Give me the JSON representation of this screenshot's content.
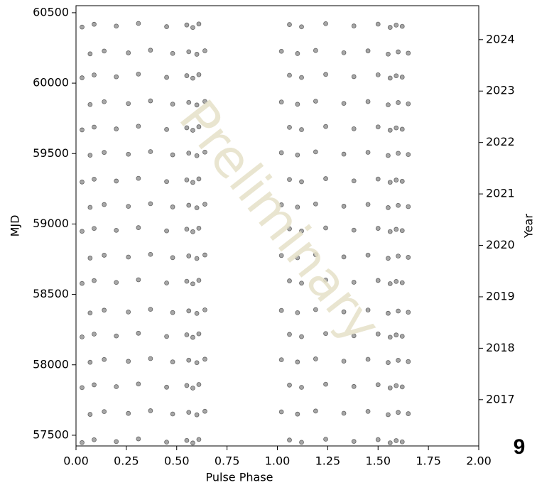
{
  "chart_data": {
    "type": "scatter",
    "x_label": "Pulse Phase",
    "y_label": "MJD",
    "y2_label": "Year",
    "watermark": "Preliminary",
    "color": "#000000",
    "xlim": [
      0,
      2
    ],
    "xticks": [
      {
        "value": 0,
        "label": "0.00"
      },
      {
        "value": 0.25,
        "label": "0.25"
      },
      {
        "value": 0.5,
        "label": "0.50"
      },
      {
        "value": 0.75,
        "label": "0.75"
      },
      {
        "value": 1,
        "label": "1.00"
      },
      {
        "value": 1.25,
        "label": "1.25"
      },
      {
        "value": 1.5,
        "label": "1.50"
      },
      {
        "value": 1.75,
        "label": "1.75"
      },
      {
        "value": 2,
        "label": "2.00"
      }
    ],
    "ylim": [
      57424,
      60550
    ],
    "yticks": [
      57500,
      58000,
      58500,
      59000,
      59500,
      60000,
      60500
    ],
    "y2lim": [
      2016.1,
      2024.66
    ],
    "y2ticks": [
      2017,
      2018,
      2019,
      2020,
      2021,
      2022,
      2023,
      2024
    ],
    "x": [
      0.03,
      0.09,
      0.2,
      0.31,
      0.45,
      0.55,
      0.58,
      0.61,
      1.06,
      1.12,
      1.24,
      1.38,
      1.5,
      1.56,
      1.59,
      1.62,
      0.07,
      0.14,
      0.26,
      0.37,
      0.48,
      0.56,
      0.6,
      0.64,
      1.02,
      1.1,
      1.19,
      1.33,
      1.45,
      1.55,
      1.6,
      1.65,
      0.03,
      0.09,
      0.2,
      0.31,
      0.45,
      0.55,
      0.58,
      0.61,
      1.06,
      1.12,
      1.24,
      1.38,
      1.5,
      1.56,
      1.59,
      1.62,
      0.07,
      0.14,
      0.26,
      0.37,
      0.48,
      0.56,
      0.6,
      0.64,
      1.02,
      1.1,
      1.19,
      1.33,
      1.45,
      1.55,
      1.6,
      1.65,
      0.03,
      0.09,
      0.2,
      0.31,
      0.45,
      0.55,
      0.58,
      0.61,
      1.06,
      1.12,
      1.24,
      1.38,
      1.5,
      1.56,
      1.59,
      1.62,
      0.07,
      0.14,
      0.26,
      0.37,
      0.48,
      0.56,
      0.6,
      0.64,
      1.02,
      1.1,
      1.19,
      1.33,
      1.45,
      1.55,
      1.6,
      1.65,
      0.03,
      0.09,
      0.2,
      0.31,
      0.45,
      0.55,
      0.58,
      0.61,
      1.06,
      1.12,
      1.24,
      1.38,
      1.5,
      1.56,
      1.59,
      1.62,
      0.07,
      0.14,
      0.26,
      0.37,
      0.48,
      0.56,
      0.6,
      0.64,
      1.02,
      1.1,
      1.19,
      1.33,
      1.45,
      1.55,
      1.6,
      1.65,
      0.03,
      0.09,
      0.2,
      0.31,
      0.45,
      0.55,
      0.58,
      0.61,
      1.06,
      1.12,
      1.24,
      1.38,
      1.5,
      1.56,
      1.59,
      1.62,
      0.07,
      0.14,
      0.26,
      0.37,
      0.48,
      0.56,
      0.6,
      0.64,
      1.02,
      1.1,
      1.19,
      1.33,
      1.45,
      1.55,
      1.6,
      1.65,
      0.03,
      0.09,
      0.2,
      0.31,
      0.45,
      0.55,
      0.58,
      0.61,
      1.06,
      1.12,
      1.24,
      1.38,
      1.5,
      1.56,
      1.59,
      1.62,
      0.07,
      0.14,
      0.26,
      0.37,
      0.48,
      0.56,
      0.6,
      0.64,
      1.02,
      1.1,
      1.19,
      1.33,
      1.45,
      1.55,
      1.6,
      1.65,
      0.03,
      0.09,
      0.2,
      0.31,
      0.45,
      0.55,
      0.58,
      0.61,
      1.06,
      1.12,
      1.24,
      1.38,
      1.5,
      1.56,
      1.59,
      1.62,
      0.07,
      0.14,
      0.26,
      0.37,
      0.48,
      0.56,
      0.6,
      0.64,
      1.02,
      1.1,
      1.19,
      1.33,
      1.45,
      1.55,
      1.6,
      1.65,
      0.03,
      0.09,
      0.2,
      0.31,
      0.45,
      0.55,
      0.58,
      0.61,
      1.06,
      1.12,
      1.24,
      1.38,
      1.5,
      1.56,
      1.59,
      1.62,
      0.07,
      0.14,
      0.26,
      0.37,
      0.48,
      0.56,
      0.6,
      0.64,
      1.02,
      1.1,
      1.19,
      1.33,
      1.45,
      1.55,
      1.6,
      1.65,
      0.03,
      0.09,
      0.2,
      0.31,
      0.45,
      0.55,
      0.58,
      0.61,
      1.06,
      1.12,
      1.24,
      1.38,
      1.5,
      1.56,
      1.59,
      1.62
    ],
    "values": [
      57448,
      57468,
      57455,
      57474,
      57451,
      57463,
      57445,
      57470,
      57466,
      57450,
      57472,
      57456,
      57469,
      57446,
      57462,
      57453,
      57648,
      57668,
      57655,
      57674,
      57651,
      57663,
      57645,
      57670,
      57666,
      57650,
      57672,
      57656,
      57669,
      57646,
      57662,
      57653,
      57838,
      57858,
      57845,
      57864,
      57841,
      57853,
      57835,
      57860,
      57856,
      57840,
      57862,
      57846,
      57859,
      57836,
      57852,
      57843,
      58018,
      58038,
      58025,
      58044,
      58021,
      58033,
      58015,
      58040,
      58036,
      58020,
      58042,
      58026,
      58039,
      58016,
      58032,
      58023,
      58198,
      58218,
      58205,
      58224,
      58201,
      58213,
      58195,
      58220,
      58216,
      58200,
      58222,
      58206,
      58219,
      58196,
      58212,
      58203,
      58368,
      58388,
      58375,
      58394,
      58371,
      58383,
      58365,
      58390,
      58386,
      58370,
      58392,
      58376,
      58389,
      58366,
      58382,
      58373,
      58578,
      58598,
      58585,
      58604,
      58581,
      58593,
      58575,
      58600,
      58596,
      58580,
      58602,
      58586,
      58599,
      58576,
      58592,
      58583,
      58758,
      58778,
      58765,
      58784,
      58761,
      58773,
      58755,
      58780,
      58776,
      58760,
      58782,
      58766,
      58779,
      58756,
      58772,
      58763,
      58948,
      58968,
      58955,
      58974,
      58951,
      58963,
      58945,
      58970,
      58966,
      58950,
      58972,
      58956,
      58969,
      58946,
      58962,
      58953,
      59118,
      59138,
      59125,
      59144,
      59121,
      59133,
      59115,
      59140,
      59136,
      59120,
      59142,
      59126,
      59139,
      59116,
      59132,
      59123,
      59298,
      59318,
      59305,
      59324,
      59301,
      59313,
      59295,
      59320,
      59316,
      59300,
      59322,
      59306,
      59319,
      59296,
      59312,
      59303,
      59488,
      59508,
      59495,
      59514,
      59491,
      59503,
      59485,
      59510,
      59506,
      59490,
      59512,
      59496,
      59509,
      59486,
      59502,
      59493,
      59668,
      59688,
      59675,
      59694,
      59671,
      59683,
      59665,
      59690,
      59686,
      59670,
      59692,
      59676,
      59689,
      59666,
      59682,
      59673,
      59848,
      59868,
      59855,
      59874,
      59851,
      59863,
      59845,
      59870,
      59866,
      59850,
      59872,
      59856,
      59869,
      59846,
      59862,
      59853,
      60038,
      60058,
      60045,
      60064,
      60041,
      60053,
      60035,
      60060,
      60056,
      60040,
      60062,
      60046,
      60059,
      60036,
      60052,
      60043,
      60208,
      60228,
      60215,
      60234,
      60211,
      60223,
      60205,
      60230,
      60226,
      60210,
      60232,
      60216,
      60229,
      60206,
      60222,
      60213,
      60398,
      60418,
      60405,
      60424,
      60401,
      60413,
      60395,
      60420,
      60416,
      60400,
      60422,
      60406,
      60419,
      60396,
      60412,
      60403
    ]
  },
  "page_number": "9"
}
